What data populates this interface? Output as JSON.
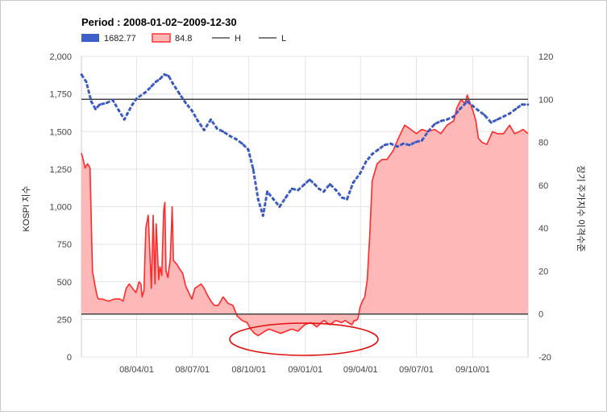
{
  "chart_data": {
    "type": "line",
    "title": "Period : 2008-01-02~2009-12-30",
    "legend": [
      {
        "label": "1682.77",
        "color": "#3d5fc9",
        "kind": "box"
      },
      {
        "label": "84.8",
        "color": "#ff3333",
        "kind": "area"
      },
      {
        "label": "H",
        "color": "#555555",
        "kind": "line"
      },
      {
        "label": "L",
        "color": "#555555",
        "kind": "line"
      }
    ],
    "ylabel_left": "KOSPI 지수",
    "ylabel_right": "장기 주가지수 이격수준",
    "left_axis": {
      "ylim": [
        0,
        2000
      ],
      "ticks": [
        "0",
        "250",
        "500",
        "750",
        "1,000",
        "1,250",
        "1,500",
        "1,750",
        "2,000"
      ]
    },
    "right_axis": {
      "ylim": [
        -20,
        120
      ],
      "ticks": [
        "-20",
        "0",
        "20",
        "40",
        "60",
        "80",
        "100",
        "120"
      ]
    },
    "xlim": [
      "2008-01-02",
      "2009-12-30"
    ],
    "x_ticks": [
      {
        "date": "2008-04-01",
        "label": "08/04/01"
      },
      {
        "date": "2008-07-01",
        "label": "08/07/01"
      },
      {
        "date": "2008-10-01",
        "label": "08/10/01"
      },
      {
        "date": "2009-01-01",
        "label": "09/01/01"
      },
      {
        "date": "2009-04-01",
        "label": "09/04/01"
      },
      {
        "date": "2009-07-01",
        "label": "09/07/01"
      },
      {
        "date": "2009-10-01",
        "label": "09/10/01"
      }
    ],
    "reference_lines": [
      {
        "name": "H",
        "axis": "right",
        "value": 100
      },
      {
        "name": "L",
        "axis": "right",
        "value": 0
      }
    ],
    "grid": true,
    "annotation": "red ellipse around negative region",
    "series": [
      {
        "name": "1682.77",
        "axis": "left",
        "color": "#3d5fc9",
        "x": [
          "2008-01-02",
          "2008-01-10",
          "2008-01-18",
          "2008-01-25",
          "2008-02-01",
          "2008-02-12",
          "2008-02-22",
          "2008-03-03",
          "2008-03-12",
          "2008-03-17",
          "2008-03-25",
          "2008-04-01",
          "2008-04-15",
          "2008-04-25",
          "2008-05-02",
          "2008-05-09",
          "2008-05-16",
          "2008-05-23",
          "2008-05-30",
          "2008-06-10",
          "2008-06-20",
          "2008-06-30",
          "2008-07-10",
          "2008-07-20",
          "2008-07-31",
          "2008-08-10",
          "2008-08-20",
          "2008-08-31",
          "2008-09-10",
          "2008-09-20",
          "2008-09-30",
          "2008-10-08",
          "2008-10-16",
          "2008-10-24",
          "2008-10-31",
          "2008-11-10",
          "2008-11-20",
          "2008-11-30",
          "2008-12-10",
          "2008-12-20",
          "2008-12-31",
          "2009-01-08",
          "2009-01-16",
          "2009-01-23",
          "2009-01-31",
          "2009-02-10",
          "2009-02-20",
          "2009-03-02",
          "2009-03-10",
          "2009-03-20",
          "2009-03-31",
          "2009-04-10",
          "2009-04-20",
          "2009-04-30",
          "2009-05-10",
          "2009-05-20",
          "2009-05-31",
          "2009-06-10",
          "2009-06-20",
          "2009-06-30",
          "2009-07-10",
          "2009-07-20",
          "2009-07-31",
          "2009-08-10",
          "2009-08-20",
          "2009-08-31",
          "2009-09-10",
          "2009-09-22",
          "2009-10-01",
          "2009-10-10",
          "2009-10-20",
          "2009-10-31",
          "2009-11-10",
          "2009-11-20",
          "2009-11-30",
          "2009-12-10",
          "2009-12-20",
          "2009-12-30"
        ],
        "values": [
          1880,
          1830,
          1700,
          1650,
          1680,
          1690,
          1710,
          1640,
          1580,
          1620,
          1680,
          1720,
          1760,
          1800,
          1830,
          1850,
          1880,
          1870,
          1820,
          1750,
          1690,
          1640,
          1570,
          1510,
          1580,
          1520,
          1500,
          1470,
          1450,
          1420,
          1380,
          1250,
          1050,
          940,
          1100,
          1050,
          1000,
          1060,
          1120,
          1110,
          1150,
          1180,
          1150,
          1120,
          1100,
          1150,
          1110,
          1060,
          1050,
          1160,
          1220,
          1300,
          1350,
          1380,
          1410,
          1420,
          1400,
          1420,
          1410,
          1430,
          1440,
          1500,
          1550,
          1570,
          1580,
          1600,
          1650,
          1700,
          1670,
          1640,
          1610,
          1560,
          1580,
          1600,
          1620,
          1650,
          1680,
          1680
        ]
      },
      {
        "name": "84.8",
        "axis": "right",
        "color": "#ff2a2a",
        "fill": "#ffb8b8",
        "x": [
          "2008-01-02",
          "2008-01-04",
          "2008-01-08",
          "2008-01-12",
          "2008-01-16",
          "2008-01-20",
          "2008-01-25",
          "2008-01-28",
          "2008-01-30",
          "2008-02-05",
          "2008-02-15",
          "2008-02-25",
          "2008-03-05",
          "2008-03-10",
          "2008-03-15",
          "2008-03-20",
          "2008-03-25",
          "2008-03-31",
          "2008-04-05",
          "2008-04-08",
          "2008-04-10",
          "2008-04-13",
          "2008-04-16",
          "2008-04-20",
          "2008-04-25",
          "2008-04-28",
          "2008-05-01",
          "2008-05-03",
          "2008-05-07",
          "2008-05-09",
          "2008-05-12",
          "2008-05-15",
          "2008-05-17",
          "2008-05-19",
          "2008-05-22",
          "2008-05-26",
          "2008-05-29",
          "2008-05-31",
          "2008-06-03",
          "2008-06-06",
          "2008-06-10",
          "2008-06-15",
          "2008-06-20",
          "2008-06-25",
          "2008-06-30",
          "2008-07-05",
          "2008-07-10",
          "2008-07-15",
          "2008-07-20",
          "2008-07-25",
          "2008-07-31",
          "2008-08-06",
          "2008-08-12",
          "2008-08-20",
          "2008-08-28",
          "2008-09-05",
          "2008-09-12",
          "2008-09-20",
          "2008-09-28",
          "2008-10-04",
          "2008-10-10",
          "2008-10-16",
          "2008-10-22",
          "2008-10-27",
          "2008-11-03",
          "2008-11-12",
          "2008-11-22",
          "2008-12-01",
          "2008-12-10",
          "2008-12-20",
          "2008-12-31",
          "2009-01-10",
          "2009-01-20",
          "2009-01-31",
          "2009-02-10",
          "2009-02-20",
          "2009-03-01",
          "2009-03-07",
          "2009-03-12",
          "2009-03-18",
          "2009-03-22",
          "2009-03-25",
          "2009-03-28",
          "2009-03-31",
          "2009-04-04",
          "2009-04-08",
          "2009-04-12",
          "2009-04-16",
          "2009-04-20",
          "2009-04-28",
          "2009-05-06",
          "2009-05-14",
          "2009-05-24",
          "2009-06-02",
          "2009-06-12",
          "2009-06-22",
          "2009-07-01",
          "2009-07-10",
          "2009-07-20",
          "2009-07-31",
          "2009-08-10",
          "2009-08-20",
          "2009-08-31",
          "2009-09-05",
          "2009-09-12",
          "2009-09-18",
          "2009-09-22",
          "2009-09-27",
          "2009-10-02",
          "2009-10-06",
          "2009-10-10",
          "2009-10-16",
          "2009-10-24",
          "2009-11-02",
          "2009-11-10",
          "2009-11-20",
          "2009-11-30",
          "2009-12-08",
          "2009-12-16",
          "2009-12-22",
          "2009-12-30"
        ],
        "values": [
          75,
          73,
          68,
          70,
          68,
          20,
          12,
          8,
          7,
          7,
          6,
          7,
          7,
          6,
          12,
          14,
          12,
          10,
          15,
          14,
          8,
          11,
          40,
          46,
          12,
          46,
          14,
          42,
          16,
          22,
          18,
          48,
          52,
          20,
          17,
          26,
          50,
          25,
          24,
          23,
          21,
          19,
          13,
          10,
          7,
          12,
          13,
          14,
          12,
          9,
          6,
          4,
          4,
          8,
          5,
          4,
          -1,
          -3,
          -4,
          -7,
          -9,
          -10,
          -9,
          -8,
          -7,
          -8,
          -9,
          -8,
          -7,
          -8,
          -5,
          -4,
          -6,
          -3,
          -5,
          -3,
          -4,
          -3,
          -4,
          -5,
          -3,
          -3,
          -2,
          3,
          6,
          8,
          16,
          37,
          62,
          70,
          72,
          72,
          76,
          82,
          88,
          86,
          84,
          86,
          85,
          86,
          84,
          88,
          90,
          96,
          100,
          98,
          102,
          98,
          94,
          90,
          82,
          80,
          79,
          85,
          84,
          84,
          88,
          84,
          85,
          86,
          84
        ]
      }
    ]
  }
}
